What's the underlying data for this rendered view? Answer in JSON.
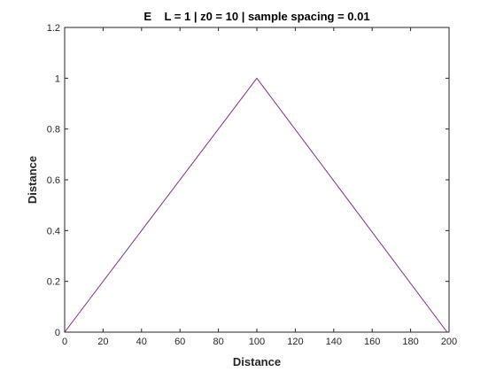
{
  "chart_data": {
    "type": "line",
    "title": "E    L = 1 | z0 = 10 | sample spacing = 0.01",
    "xlabel": "Distance",
    "ylabel": "Distance",
    "xlim": [
      0,
      200
    ],
    "ylim": [
      0,
      1.2
    ],
    "xticks": [
      "0",
      "20",
      "40",
      "60",
      "80",
      "100",
      "120",
      "140",
      "160",
      "180",
      "200"
    ],
    "yticks": [
      "0",
      "0.2",
      "0.4",
      "0.6",
      "0.8",
      "1",
      "1.2"
    ],
    "grid": false,
    "series": [
      {
        "color": "#7E2F8E",
        "x": [
          0,
          100,
          199
        ],
        "y": [
          0,
          1,
          0
        ]
      }
    ]
  }
}
